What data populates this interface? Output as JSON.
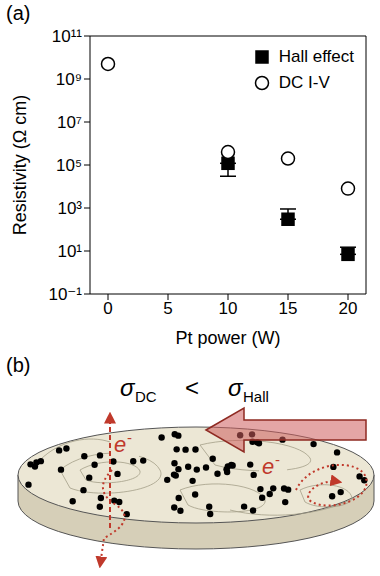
{
  "chart_data": {
    "type": "scatter",
    "panel_label": "(a)",
    "xlabel": "Pt power (W)",
    "ylabel": "Resistivity (Ω cm)",
    "log": "y",
    "legend": "upper right",
    "xlim": [
      -1.5,
      21.5
    ],
    "xticks": [
      0,
      5,
      10,
      15,
      20
    ],
    "ylim": [
      0.1,
      100000000000
    ],
    "yticks": [
      {
        "value": 0.1,
        "label": "10⁻¹"
      },
      {
        "value": 10,
        "label": "10¹"
      },
      {
        "value": 1000,
        "label": "10³"
      },
      {
        "value": 100000,
        "label": "10⁵"
      },
      {
        "value": 10000000,
        "label": "10⁷"
      },
      {
        "value": 1000000000,
        "label": "10⁹"
      },
      {
        "value": 100000000000,
        "label": "10¹¹"
      }
    ],
    "series": [
      {
        "name": "Hall effect",
        "marker": "filled_square",
        "color": "#000000",
        "x": [
          10,
          15,
          20
        ],
        "values": [
          120000,
          300,
          7
        ],
        "errors": [
          [
            90000,
            0
          ],
          [
            0,
            600
          ],
          [
            0,
            8
          ]
        ]
      },
      {
        "name": "DC I-V",
        "marker": "open_circle",
        "color": "#000000",
        "x": [
          0,
          10,
          15,
          20
        ],
        "values": [
          5000000000,
          400000,
          200000,
          8000
        ]
      }
    ]
  },
  "diagram": {
    "panel_label": "(b)",
    "relation": {
      "left": {
        "symbol": "σ",
        "subscript": "DC"
      },
      "operator": "<",
      "right": {
        "symbol": "σ",
        "subscript": "Hall"
      }
    },
    "carrier": {
      "symbol": "e",
      "superscript": "-"
    }
  }
}
